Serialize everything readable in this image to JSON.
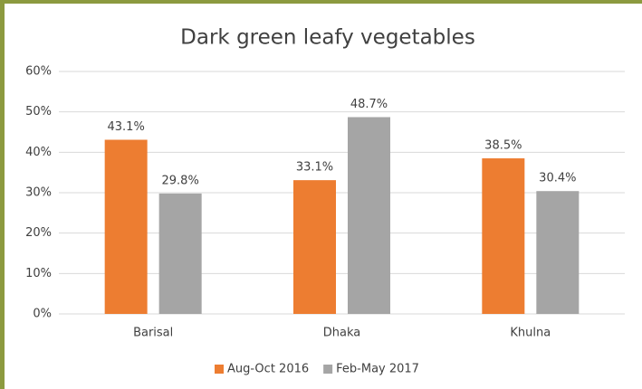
{
  "chart_data": {
    "type": "bar",
    "title": "Dark green leafy vegetables",
    "categories": [
      "Barisal",
      "Dhaka",
      "Khulna"
    ],
    "series": [
      {
        "name": "Aug-Oct 2016",
        "color": "#ed7d31",
        "values": [
          43.1,
          33.1,
          38.5
        ],
        "value_labels": [
          "43.1%",
          "33.1%",
          "38.5%"
        ]
      },
      {
        "name": "Feb-May 2017",
        "color": "#a5a5a5",
        "values": [
          29.8,
          48.7,
          30.4
        ],
        "value_labels": [
          "29.8%",
          "48.7%",
          "30.4%"
        ]
      }
    ],
    "ylim": [
      0,
      60
    ],
    "yticks": [
      {
        "value": 0,
        "label": "0%"
      },
      {
        "value": 10,
        "label": "10%"
      },
      {
        "value": 20,
        "label": "20%"
      },
      {
        "value": 30,
        "label": "30%"
      },
      {
        "value": 40,
        "label": "40%"
      },
      {
        "value": 50,
        "label": "50%"
      },
      {
        "value": 60,
        "label": "60%"
      }
    ],
    "grid": true,
    "legend": "bottom"
  }
}
